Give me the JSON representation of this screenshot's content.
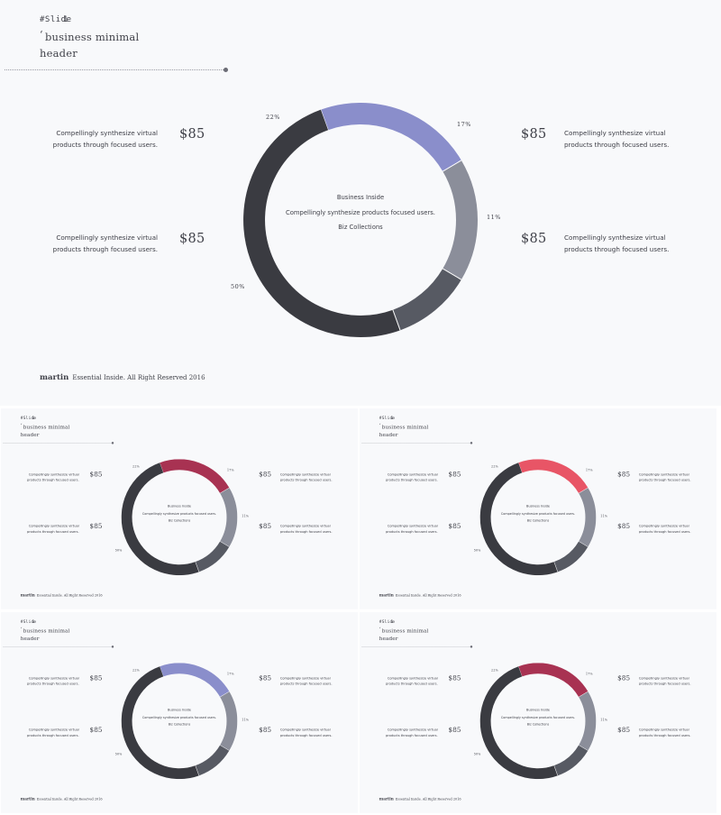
{
  "slide": {
    "label": "#Slide",
    "number": "1",
    "tick": "‘",
    "title_line1": "business minimal",
    "title_line2": "header"
  },
  "items": {
    "top_left": {
      "text_line1": "Compellingly synthesize virtual",
      "text_line2": "products through focused users.",
      "price": "$85"
    },
    "top_right": {
      "text_line1": "Compellingly synthesize virtual",
      "text_line2": "products through focused users.",
      "price": "$85"
    },
    "bottom_left": {
      "text_line1": "Compellingly synthesize virtual",
      "text_line2": "products through focused users.",
      "price": "$85"
    },
    "bottom_right": {
      "text_line1": "Compellingly synthesize virtual",
      "text_line2": "products through focused users.",
      "price": "$85"
    }
  },
  "center": {
    "line1": "Business Inside",
    "line2": "Compellingly synthesize products focused users.",
    "line3": "Biz Collections"
  },
  "chart_data": {
    "type": "pie",
    "variant": "donut",
    "labels": [
      "22%",
      "17%",
      "11%",
      "50%"
    ],
    "values": [
      22,
      17,
      11,
      50
    ],
    "colors": [
      "#8a8ecb",
      "#8b8e9a",
      "#575a63",
      "#3a3b41"
    ]
  },
  "footer": {
    "brand": "martin",
    "text": "Essential Inside. All Right Reserved 2016"
  },
  "variant_colors": {
    "slide_1": "#8a8ecb",
    "slide_2": "#a83252",
    "slide_3": "#e85566",
    "slide_4": "#8a8ecb",
    "slide_5": "#a83252"
  }
}
